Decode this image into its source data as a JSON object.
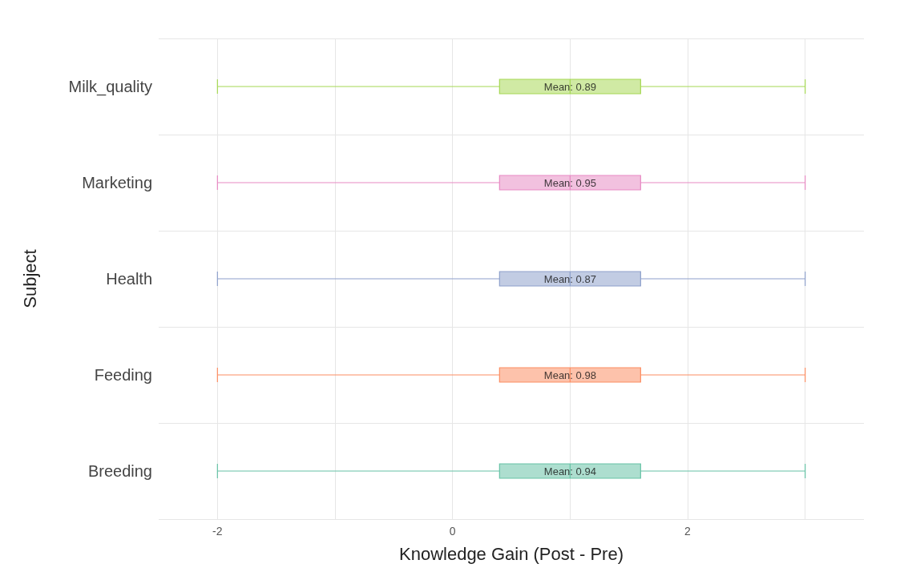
{
  "chart_data": {
    "type": "box",
    "orientation": "horizontal",
    "xlabel": "Knowledge Gain (Post - Pre)",
    "ylabel": "Subject",
    "categories": [
      "Milk_quality",
      "Marketing",
      "Health",
      "Feeding",
      "Breeding"
    ],
    "colors": [
      "#a6d854",
      "#e78ac3",
      "#8da0cb",
      "#fc8d62",
      "#66c2a5"
    ],
    "boxes": [
      {
        "low": -2,
        "q1": 0.4,
        "median": 1,
        "q3": 1.6,
        "high": 3
      },
      {
        "low": -2,
        "q1": 0.4,
        "median": 1,
        "q3": 1.6,
        "high": 3
      },
      {
        "low": -2,
        "q1": 0.4,
        "median": 1,
        "q3": 1.6,
        "high": 3
      },
      {
        "low": -2,
        "q1": 0.4,
        "median": 1,
        "q3": 1.6,
        "high": 3
      },
      {
        "low": -2,
        "q1": 0.4,
        "median": 1,
        "q3": 1.6,
        "high": 3
      }
    ],
    "xlim": [
      -2.5,
      3.5
    ],
    "xticks": [
      -2,
      {
        "value": -1,
        "label": null
      },
      0,
      {
        "value": 1,
        "label": null
      },
      2,
      {
        "value": 3,
        "label": null
      }
    ],
    "annotations": [
      "Mean: 0.89",
      "Mean: 0.95",
      "Mean: 0.87",
      "Mean: 0.98",
      "Mean: 0.94"
    ],
    "grid": true
  }
}
